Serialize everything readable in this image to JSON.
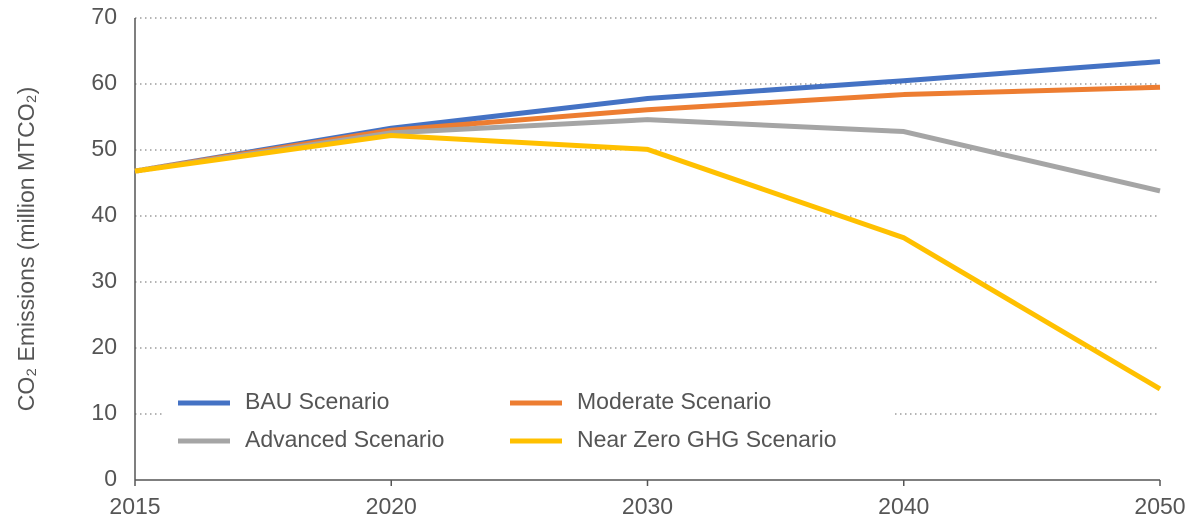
{
  "chart_data": {
    "type": "line",
    "y_label": "CO₂ Emissions (million MTCO₂)",
    "categories": [
      "2015",
      "2020",
      "2030",
      "2040",
      "2050"
    ],
    "series": [
      {
        "name": "BAU Scenario",
        "color": "#4472c4",
        "values": [
          46.8,
          53.3,
          57.8,
          60.5,
          63.4
        ]
      },
      {
        "name": "Moderate Scenario",
        "color": "#ed7d31",
        "values": [
          46.8,
          53.0,
          56.1,
          58.4,
          59.5
        ]
      },
      {
        "name": "Advanced Scenario",
        "color": "#a5a5a5",
        "values": [
          46.8,
          52.6,
          54.6,
          52.8,
          43.8
        ]
      },
      {
        "name": "Near Zero GHG Scenario",
        "color": "#ffc000",
        "values": [
          46.8,
          52.2,
          50.1,
          36.7,
          13.8
        ]
      }
    ],
    "ylim": [
      0,
      70
    ],
    "yticks": [
      0,
      10,
      20,
      30,
      40,
      50,
      60,
      70
    ],
    "grid": true,
    "legend": "lower left"
  }
}
